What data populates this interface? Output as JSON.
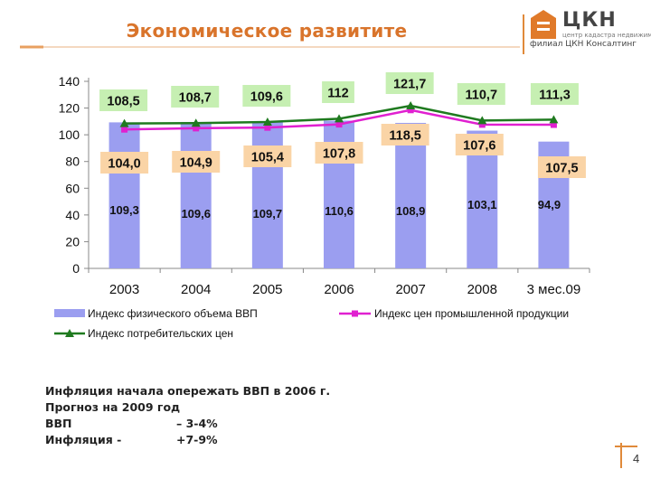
{
  "header": {
    "title": "Экономическое развитите",
    "logo_main": "ЦКН",
    "logo_sub1": "центр кадастра недвижимости",
    "logo_sub2": "филиал ЦКН Консалтинг"
  },
  "chart_data": {
    "type": "bar",
    "categories": [
      "2003",
      "2004",
      "2005",
      "2006",
      "2007",
      "2008",
      "3 мес.09"
    ],
    "ylim": [
      0,
      140
    ],
    "yticks": [
      0,
      20,
      40,
      60,
      80,
      100,
      120,
      140
    ],
    "grid": false,
    "series": [
      {
        "name": "Индекс физического объема ВВП",
        "kind": "bar",
        "color": "#9b9ef0",
        "values": [
          109.3,
          109.6,
          109.7,
          110.6,
          108.9,
          103.1,
          94.9
        ],
        "labels": [
          "109,3",
          "109,6",
          "109,7",
          "110,6",
          "108,9",
          "103,1",
          "94,9"
        ]
      },
      {
        "name": "Индекс цен промышленной продукции",
        "kind": "line",
        "color": "#e020d0",
        "values": [
          104.0,
          104.9,
          105.4,
          107.8,
          118.5,
          107.6,
          107.5
        ],
        "labels": [
          "104,0",
          "104,9",
          "105,4",
          "107,8",
          "118,5",
          "107,6",
          "107,5"
        ]
      },
      {
        "name": "Индекс потребительских цен",
        "kind": "line",
        "color": "#1f7a1f",
        "values": [
          108.5,
          108.7,
          109.6,
          112,
          121.7,
          110.7,
          111.3
        ],
        "labels": [
          "108,5",
          "108,7",
          "109,6",
          "112",
          "121,7",
          "110,7",
          "111,3"
        ]
      }
    ],
    "legend_position": "bottom"
  },
  "notes": {
    "line1": "Инфляция начала опережать ВВП в 2006 г.",
    "line2": "Прогноз на 2009 год",
    "gdp_label": "ВВП",
    "gdp_value": "– 3-4%",
    "inflation_label": "Инфляция -",
    "inflation_value": "+7-9%"
  },
  "page_number": "4"
}
